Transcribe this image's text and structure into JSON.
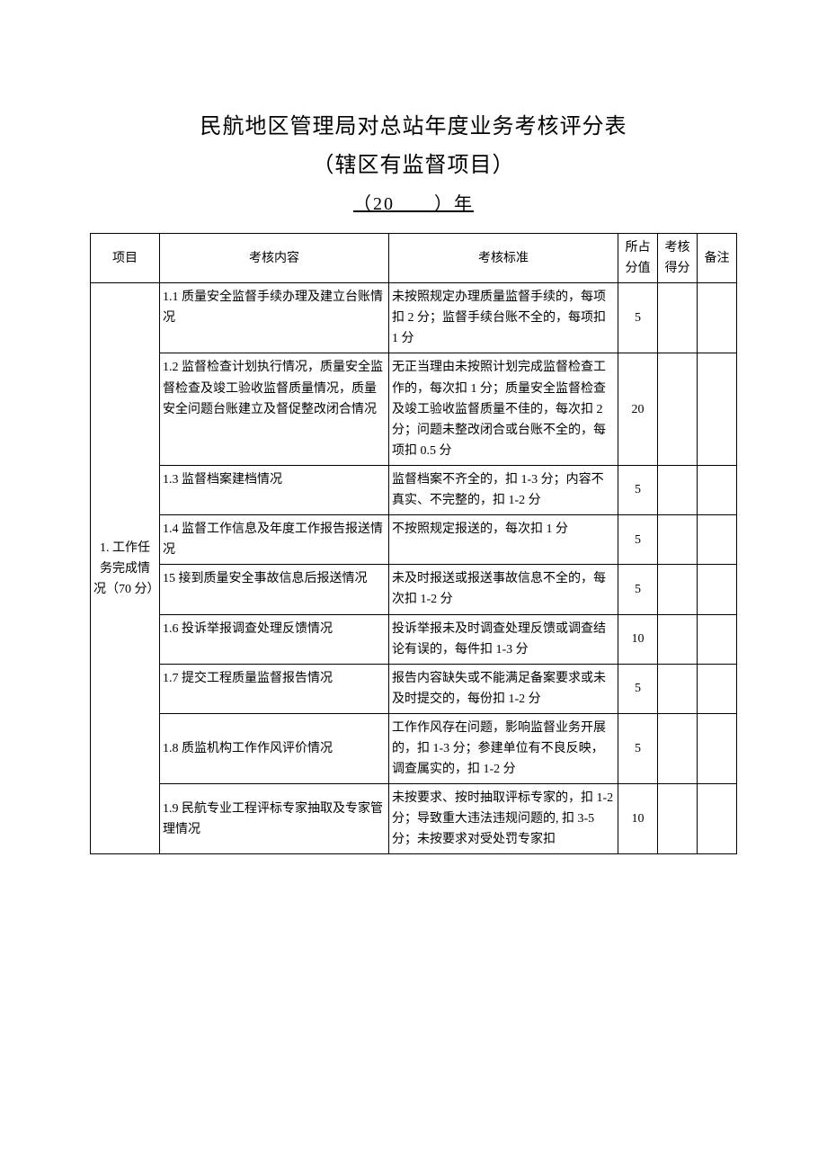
{
  "title_line1": "民航地区管理局对总站年度业务考核评分表",
  "title_line2": "（辖区有监督项目）",
  "year_line": "（20　　）年",
  "headers": {
    "project": "项目",
    "content": "考核内容",
    "standard": "考核标准",
    "score": "所占分值",
    "got": "考核得分",
    "note": "备注"
  },
  "project1": {
    "label": "1. 工作任务完成情况（70 分）"
  },
  "rows": [
    {
      "content": "1.1 质量安全监督手续办理及建立台账情况",
      "standard": "未按照规定办理质量监督手续的，每项扣 2 分；监督手续台账不全的，每项扣 1 分",
      "score": "5"
    },
    {
      "content": "1.2 监督检查计划执行情况，质量安全监督检查及竣工验收监督质量情况，质量安全问题台账建立及督促整改闭合情况",
      "standard": "无正当理由未按照计划完成监督检查工作的，每次扣 1 分；质量安全监督检查及竣工验收监督质量不佳的，每次扣 2 分；问题未整改闭合或台账不全的，每项扣 0.5 分",
      "score": "20"
    },
    {
      "content": "1.3 监督档案建档情况",
      "standard": "监督档案不齐全的，扣 1-3 分；内容不真实、不完整的，扣 1-2 分",
      "score": "5"
    },
    {
      "content": "1.4 监督工作信息及年度工作报告报送情况",
      "standard": "不按照规定报送的，每次扣 1 分",
      "score": "5"
    },
    {
      "content": "15 接到质量安全事故信息后报送情况",
      "standard": "未及时报送或报送事故信息不全的，每次扣 1-2 分",
      "score": "5"
    },
    {
      "content": "1.6 投诉举报调查处理反馈情况",
      "standard": "投诉举报未及时调查处理反馈或调查结论有误的，每件扣 1-3 分",
      "score": "10"
    },
    {
      "content": "1.7 提交工程质量监督报告情况",
      "standard": "报告内容缺失或不能满足备案要求或未及时提交的，每份扣 1-2 分",
      "score": "5"
    },
    {
      "content": "1.8 质监机构工作作风评价情况",
      "standard": "工作作风存在问题，影响监督业务开展的，扣 1-3 分；参建单位有不良反映，调查属实的，扣 1-2 分",
      "score": "5"
    },
    {
      "content": "1.9 民航专业工程评标专家抽取及专家管理情况",
      "standard": "未按要求、按时抽取评标专家的，扣 1-2 分；导致重大违法违规问题的, 扣 3-5 分；未按要求对受处罚专家扣",
      "score": "10"
    }
  ]
}
